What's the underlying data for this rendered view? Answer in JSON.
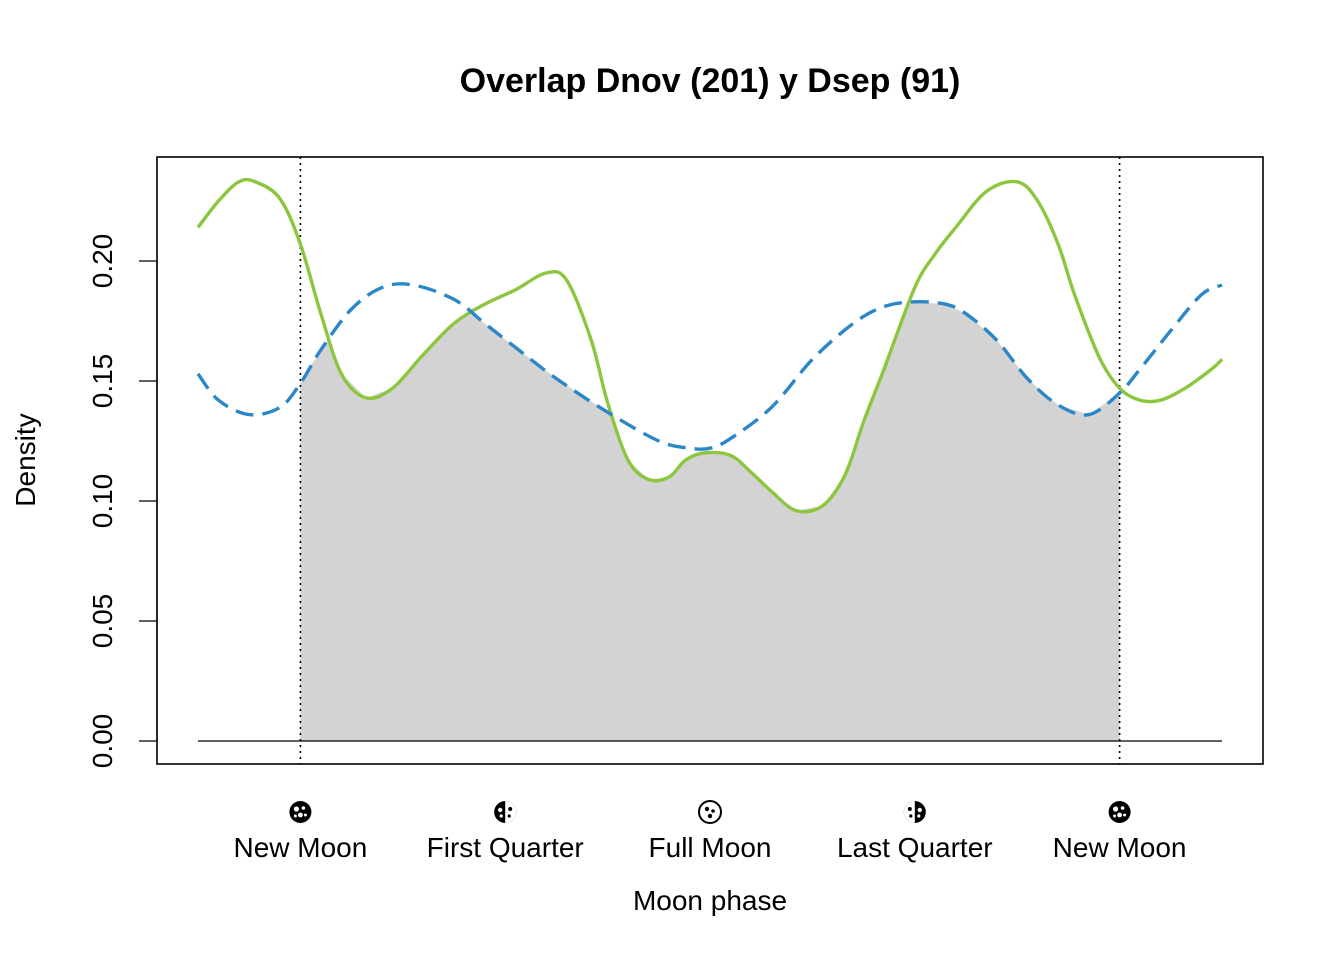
{
  "chart_data": {
    "type": "line",
    "title": "Overlap Dnov (201) y Dsep (91)",
    "xlabel": "Moon phase",
    "ylabel": "Density",
    "xlim": [
      -0.5,
      4.5
    ],
    "ylim": [
      0,
      0.24
    ],
    "y_ticks": [
      0.0,
      0.05,
      0.1,
      0.15,
      0.2
    ],
    "y_tick_labels": [
      "0.00",
      "0.05",
      "0.10",
      "0.15",
      "0.20"
    ],
    "x_ticks": [
      {
        "value": 0,
        "label": "New Moon",
        "phase": "new"
      },
      {
        "value": 1,
        "label": "First Quarter",
        "phase": "first-quarter"
      },
      {
        "value": 2,
        "label": "Full Moon",
        "phase": "full"
      },
      {
        "value": 3,
        "label": "Last Quarter",
        "phase": "last-quarter"
      },
      {
        "value": 4,
        "label": "New Moon",
        "phase": "new"
      }
    ],
    "overlap_range": [
      0,
      4
    ],
    "grid": false,
    "legend": "none",
    "colors": {
      "series_solid": "#8cc63f",
      "series_dashed": "#2b87c8",
      "overlap_fill": "#d3d3d3",
      "axes": "#000000"
    },
    "series": [
      {
        "style": "solid",
        "color": "#8cc63f",
        "x": [
          -0.5,
          -0.4,
          -0.3,
          -0.22,
          -0.1,
          0.0,
          0.1,
          0.2,
          0.32,
          0.45,
          0.6,
          0.75,
          0.9,
          1.05,
          1.2,
          1.3,
          1.42,
          1.5,
          1.6,
          1.7,
          1.8,
          1.88,
          1.97,
          2.1,
          2.2,
          2.3,
          2.42,
          2.55,
          2.66,
          2.75,
          2.85,
          3.0,
          3.1,
          3.2,
          3.35,
          3.5,
          3.6,
          3.7,
          3.78,
          3.9,
          4.0,
          4.1,
          4.2,
          4.32,
          4.45,
          4.5
        ],
        "y": [
          0.214,
          0.225,
          0.233,
          0.233,
          0.226,
          0.207,
          0.178,
          0.153,
          0.143,
          0.147,
          0.161,
          0.174,
          0.182,
          0.188,
          0.195,
          0.192,
          0.167,
          0.141,
          0.117,
          0.109,
          0.11,
          0.117,
          0.12,
          0.119,
          0.112,
          0.104,
          0.096,
          0.098,
          0.111,
          0.133,
          0.155,
          0.189,
          0.203,
          0.214,
          0.229,
          0.233,
          0.225,
          0.207,
          0.186,
          0.16,
          0.147,
          0.142,
          0.142,
          0.147,
          0.155,
          0.159
        ]
      },
      {
        "style": "dashed",
        "color": "#2b87c8",
        "x": [
          -0.5,
          -0.4,
          -0.25,
          -0.1,
          0.0,
          0.1,
          0.25,
          0.4,
          0.55,
          0.75,
          0.9,
          1.05,
          1.25,
          1.5,
          1.75,
          1.9,
          2.0,
          2.1,
          2.3,
          2.5,
          2.7,
          2.85,
          3.0,
          3.15,
          3.25,
          3.4,
          3.55,
          3.7,
          3.85,
          4.0,
          4.1,
          4.25,
          4.4,
          4.5
        ],
        "y": [
          0.153,
          0.142,
          0.136,
          0.139,
          0.149,
          0.163,
          0.18,
          0.189,
          0.19,
          0.184,
          0.174,
          0.164,
          0.151,
          0.137,
          0.125,
          0.122,
          0.122,
          0.126,
          0.139,
          0.159,
          0.174,
          0.181,
          0.183,
          0.182,
          0.178,
          0.167,
          0.151,
          0.14,
          0.136,
          0.145,
          0.155,
          0.171,
          0.186,
          0.19
        ]
      }
    ]
  }
}
